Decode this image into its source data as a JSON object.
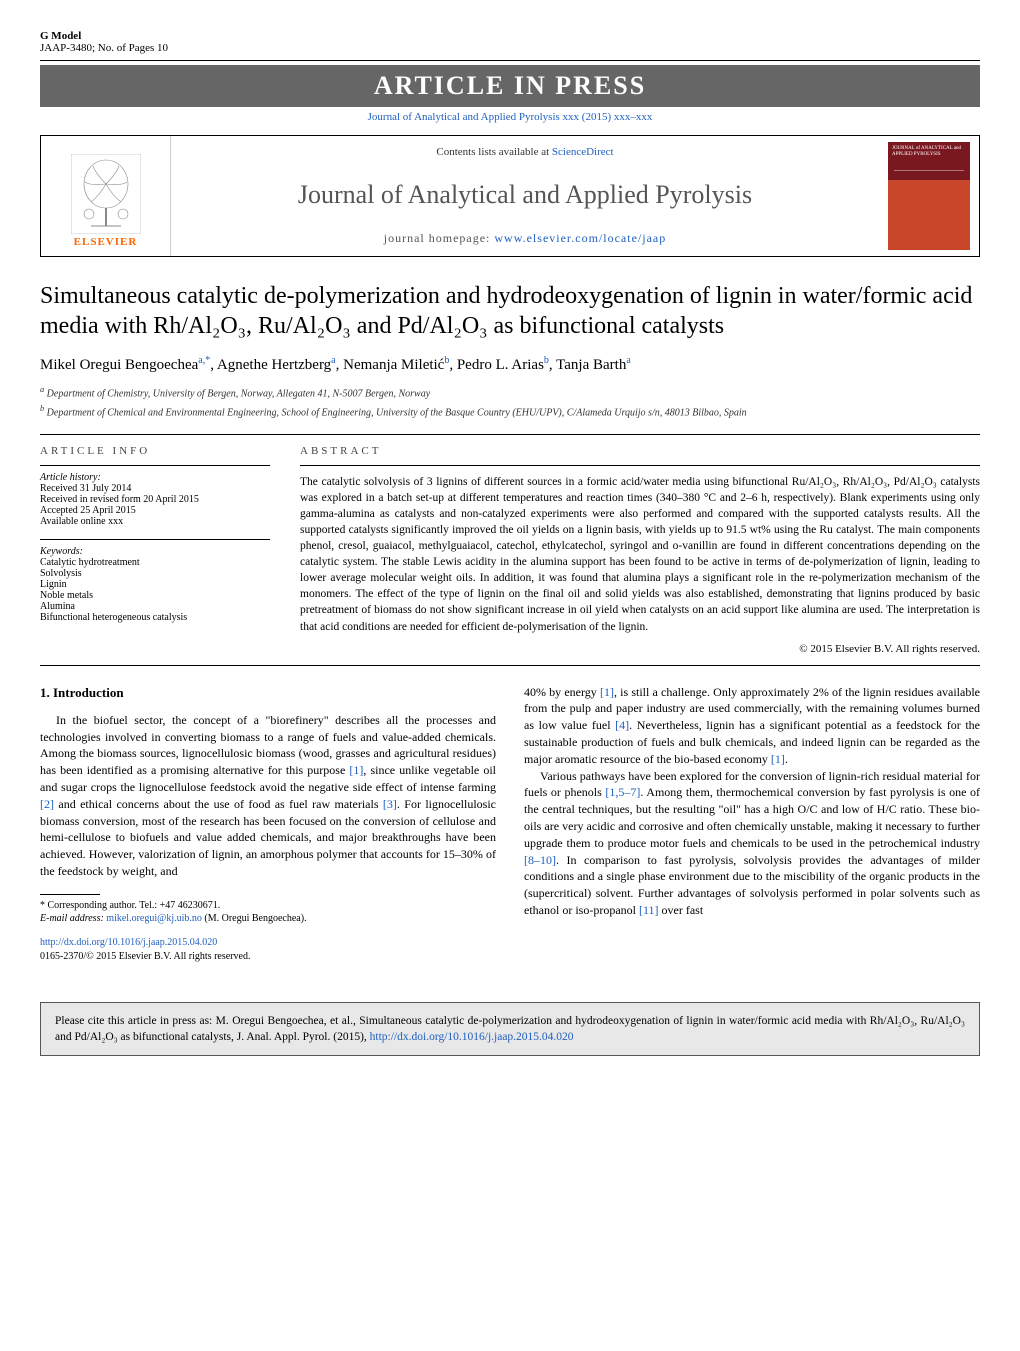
{
  "header": {
    "gmodel": "G Model",
    "ref": "JAAP-3480; No. of Pages 10",
    "banner": "ARTICLE IN PRESS",
    "journal_link": "Journal of Analytical and Applied Pyrolysis xxx (2015) xxx–xxx"
  },
  "journalbox": {
    "contents": "Contents lists available at ",
    "sd": "ScienceDirect",
    "name": "Journal of Analytical and Applied Pyrolysis",
    "homepage_label": "journal homepage: ",
    "homepage_url": "www.elsevier.com/locate/jaap",
    "elsevier": "ELSEVIER",
    "cover_text": "JOURNAL of ANALYTICAL and APPLIED PYROLYSIS"
  },
  "title": "Simultaneous catalytic de-polymerization and hydrodeoxygenation of lignin in water/formic acid media with Rh/Al₂O₃, Ru/Al₂O₃ and Pd/Al₂O₃ as bifunctional catalysts",
  "authors_html": "Mikel Oregui Bengoechea<sup>a,*</sup>, Agnethe Hertzberg<sup>a</sup>, Nemanja Miletić<sup>b</sup>, Pedro L. Arias<sup>b</sup>, Tanja Barth<sup>a</sup>",
  "affiliations": {
    "a": "Department of Chemistry, University of Bergen, Norway, Allegaten 41, N-5007 Bergen, Norway",
    "b": "Department of Chemical and Environmental Engineering, School of Engineering, University of the Basque Country (EHU/UPV), C/Alameda Urquijo s/n, 48013 Bilbao, Spain"
  },
  "info_head": "ARTICLE INFO",
  "abstract_head": "ABSTRACT",
  "history": {
    "label": "Article history:",
    "received": "Received 31 July 2014",
    "revised": "Received in revised form 20 April 2015",
    "accepted": "Accepted 25 April 2015",
    "online": "Available online xxx"
  },
  "keywords": {
    "label": "Keywords:",
    "items": [
      "Catalytic hydrotreatment",
      "Solvolysis",
      "Lignin",
      "Noble metals",
      "Alumina",
      "Bifunctional heterogeneous catalysis"
    ]
  },
  "abstract": "The catalytic solvolysis of 3 lignins of different sources in a formic acid/water media using bifunctional Ru/Al₂O₃, Rh/Al₂O₃, Pd/Al₂O₃ catalysts was explored in a batch set-up at different temperatures and reaction times (340–380 °C and 2–6 h, respectively). Blank experiments using only gamma-alumina as catalysts and non-catalyzed experiments were also performed and compared with the supported catalysts results. All the supported catalysts significantly improved the oil yields on a lignin basis, with yields up to 91.5 wt% using the Ru catalyst. The main components phenol, cresol, guaiacol, methylguaiacol, catechol, ethylcatechol, syringol and o-vanillin are found in different concentrations depending on the catalytic system. The stable Lewis acidity in the alumina support has been found to be active in terms of de-polymerization of lignin, leading to lower average molecular weight oils. In addition, it was found that alumina plays a significant role in the re-polymerization mechanism of the monomers. The effect of the type of lignin on the final oil and solid yields was also established, demonstrating that lignins produced by basic pretreatment of biomass do not show significant increase in oil yield when catalysts on an acid support like alumina are used. The interpretation is that acid conditions are needed for efficient de-polymerisation of the lignin.",
  "copyright": "© 2015 Elsevier B.V. All rights reserved.",
  "section_head": "1. Introduction",
  "col_left": {
    "p1": "In the biofuel sector, the concept of a \"biorefinery\" describes all the processes and technologies involved in converting biomass to a range of fuels and value-added chemicals. Among the biomass sources, lignocellulosic biomass (wood, grasses and agricultural residues) has been identified as a promising alternative for this purpose [1], since unlike vegetable oil and sugar crops the lignocellulose feedstock avoid the negative side effect of intense farming [2] and ethical concerns about the use of food as fuel raw materials [3]. For lignocellulosic biomass conversion, most of the research has been focused on the conversion of cellulose and hemi-cellulose to biofuels and value added chemicals, and major breakthroughs have been achieved. However, valorization of lignin, an amorphous polymer that accounts for 15–30% of the feedstock by weight, and"
  },
  "col_right": {
    "p1": "40% by energy [1], is still a challenge. Only approximately 2% of the lignin residues available from the pulp and paper industry are used commercially, with the remaining volumes burned as low value fuel [4]. Nevertheless, lignin has a significant potential as a feedstock for the sustainable production of fuels and bulk chemicals, and indeed lignin can be regarded as the major aromatic resource of the bio-based economy [1].",
    "p2": "Various pathways have been explored for the conversion of lignin-rich residual material for fuels or phenols [1,5–7]. Among them, thermochemical conversion by fast pyrolysis is one of the central techniques, but the resulting \"oil\" has a high O/C and low of H/C ratio. These bio-oils are very acidic and corrosive and often chemically unstable, making it necessary to further upgrade them to produce motor fuels and chemicals to be used in the petrochemical industry [8–10]. In comparison to fast pyrolysis, solvolysis provides the advantages of milder conditions and a single phase environment due to the miscibility of the organic products in the (supercritical) solvent. Further advantages of solvolysis performed in polar solvents such as ethanol or iso-propanol [11] over fast"
  },
  "footnote": {
    "corr": "* Corresponding author. Tel.: +47 46230671.",
    "email_label": "E-mail address: ",
    "email": "mikel.oregui@kj.uib.no",
    "email_name": " (M. Oregui Bengoechea)."
  },
  "doi": {
    "link": "http://dx.doi.org/10.1016/j.jaap.2015.04.020",
    "issn": "0165-2370/© 2015 Elsevier B.V. All rights reserved."
  },
  "citebox": {
    "prefix": "Please cite this article in press as: M. Oregui Bengoechea, et al., Simultaneous catalytic de-polymerization and hydrodeoxygenation of lignin in water/formic acid media with Rh/Al₂O₃, Ru/Al₂O₃ and Pd/Al₂O₃ as bifunctional catalysts, J. Anal. Appl. Pyrol. (2015), ",
    "link": "http://dx.doi.org/10.1016/j.jaap.2015.04.020"
  },
  "colors": {
    "banner_bg": "#666666",
    "link": "#2060c0",
    "elsevier": "#ff6600",
    "citebox_bg": "#e8e8e8"
  }
}
